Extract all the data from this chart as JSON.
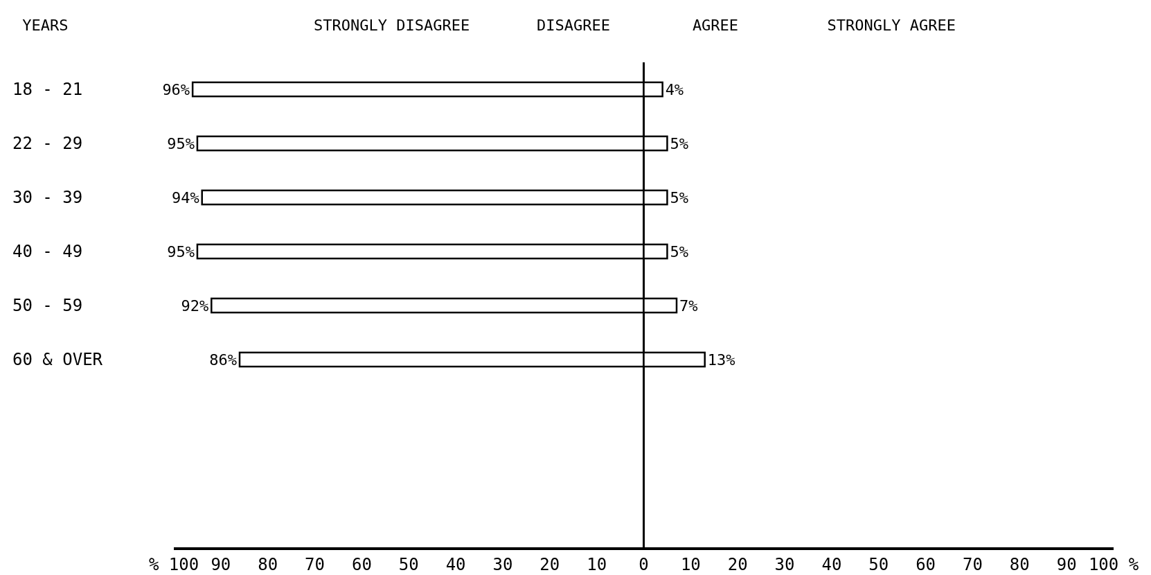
{
  "chart_data": {
    "type": "bar",
    "orientation": "horizontal",
    "annotations": [
      "YEARS",
      "STRONGLY DISAGREE",
      "DISAGREE",
      "AGREE",
      "STRONGLY AGREE"
    ],
    "categories": [
      "18 - 21",
      "22 - 29",
      "30 - 39",
      "40 - 49",
      "50 - 59",
      "60 & OVER",
      null,
      null,
      null
    ],
    "series": [
      {
        "color": "#ffffff",
        "base": [
          -96,
          -95,
          -94,
          -95,
          -92,
          -86,
          null,
          null,
          null
        ],
        "values": [
          96,
          95,
          94,
          95,
          92,
          86,
          null,
          null,
          null
        ],
        "value_labels": [
          "96%",
          "95%",
          "94%",
          "95%",
          "92%",
          "86%",
          null,
          null,
          null
        ]
      },
      {
        "color": "#ffffff",
        "values": [
          4,
          5,
          5,
          5,
          7,
          13,
          null,
          null,
          null
        ],
        "value_labels": [
          "4%",
          "5%",
          "5%",
          "5%",
          "7%",
          "13%",
          null,
          null,
          null
        ]
      }
    ],
    "xlim": [
      -100,
      100
    ],
    "xticks": [
      {
        "value": -100,
        "label": "% 100"
      },
      {
        "value": -90,
        "label": "90"
      },
      {
        "value": -80,
        "label": "80"
      },
      {
        "value": -70,
        "label": "70"
      },
      {
        "value": -60,
        "label": "60"
      },
      {
        "value": -50,
        "label": "50"
      },
      {
        "value": -40,
        "label": "40"
      },
      {
        "value": -30,
        "label": "30"
      },
      {
        "value": -20,
        "label": "20"
      },
      {
        "value": -10,
        "label": "10"
      },
      0,
      10,
      20,
      30,
      40,
      50,
      60,
      70,
      80,
      90,
      {
        "value": 100,
        "label": "100 %"
      }
    ]
  }
}
